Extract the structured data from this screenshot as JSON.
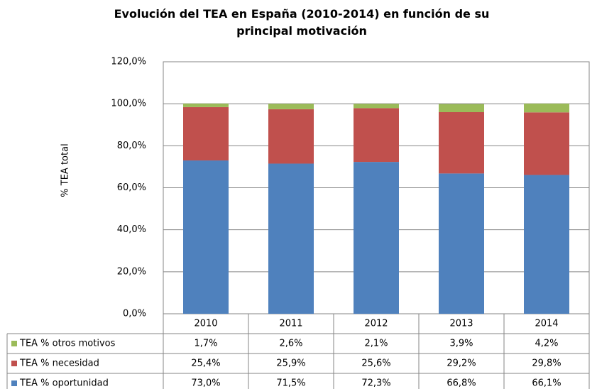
{
  "chart_data": {
    "type": "bar",
    "stacked": true,
    "title": "Evolución del TEA en España (2010-2014) en función de su principal motivación",
    "y_label": "% TEA total",
    "categories": [
      "2010",
      "2011",
      "2012",
      "2013",
      "2014"
    ],
    "series": [
      {
        "name": "TEA % otros motivos",
        "color": "#9bbb59",
        "values": [
          1.7,
          2.6,
          2.1,
          3.9,
          4.2
        ],
        "value_labels": [
          "1,7%",
          "2,6%",
          "2,1%",
          "3,9%",
          "4,2%"
        ]
      },
      {
        "name": "TEA % necesidad",
        "color": "#c0504d",
        "values": [
          25.4,
          25.9,
          25.6,
          29.2,
          29.8
        ],
        "value_labels": [
          "25,4%",
          "25,9%",
          "25,6%",
          "29,2%",
          "29,8%"
        ]
      },
      {
        "name": "TEA % oportunidad",
        "color": "#4f81bd",
        "values": [
          73.0,
          71.5,
          72.3,
          66.8,
          66.1
        ],
        "value_labels": [
          "73,0%",
          "71,5%",
          "72,3%",
          "66,8%",
          "66,1%"
        ]
      }
    ],
    "ylim": [
      0,
      120
    ],
    "yticks": [
      {
        "value": 0,
        "label": "0,0%"
      },
      {
        "value": 20,
        "label": "20,0%"
      },
      {
        "value": 40,
        "label": "40,0%"
      },
      {
        "value": 60,
        "label": "60,0%"
      },
      {
        "value": 80,
        "label": "80,0%"
      },
      {
        "value": 100,
        "label": "100,0%"
      },
      {
        "value": 120,
        "label": "120,0%"
      }
    ],
    "grid": true
  }
}
